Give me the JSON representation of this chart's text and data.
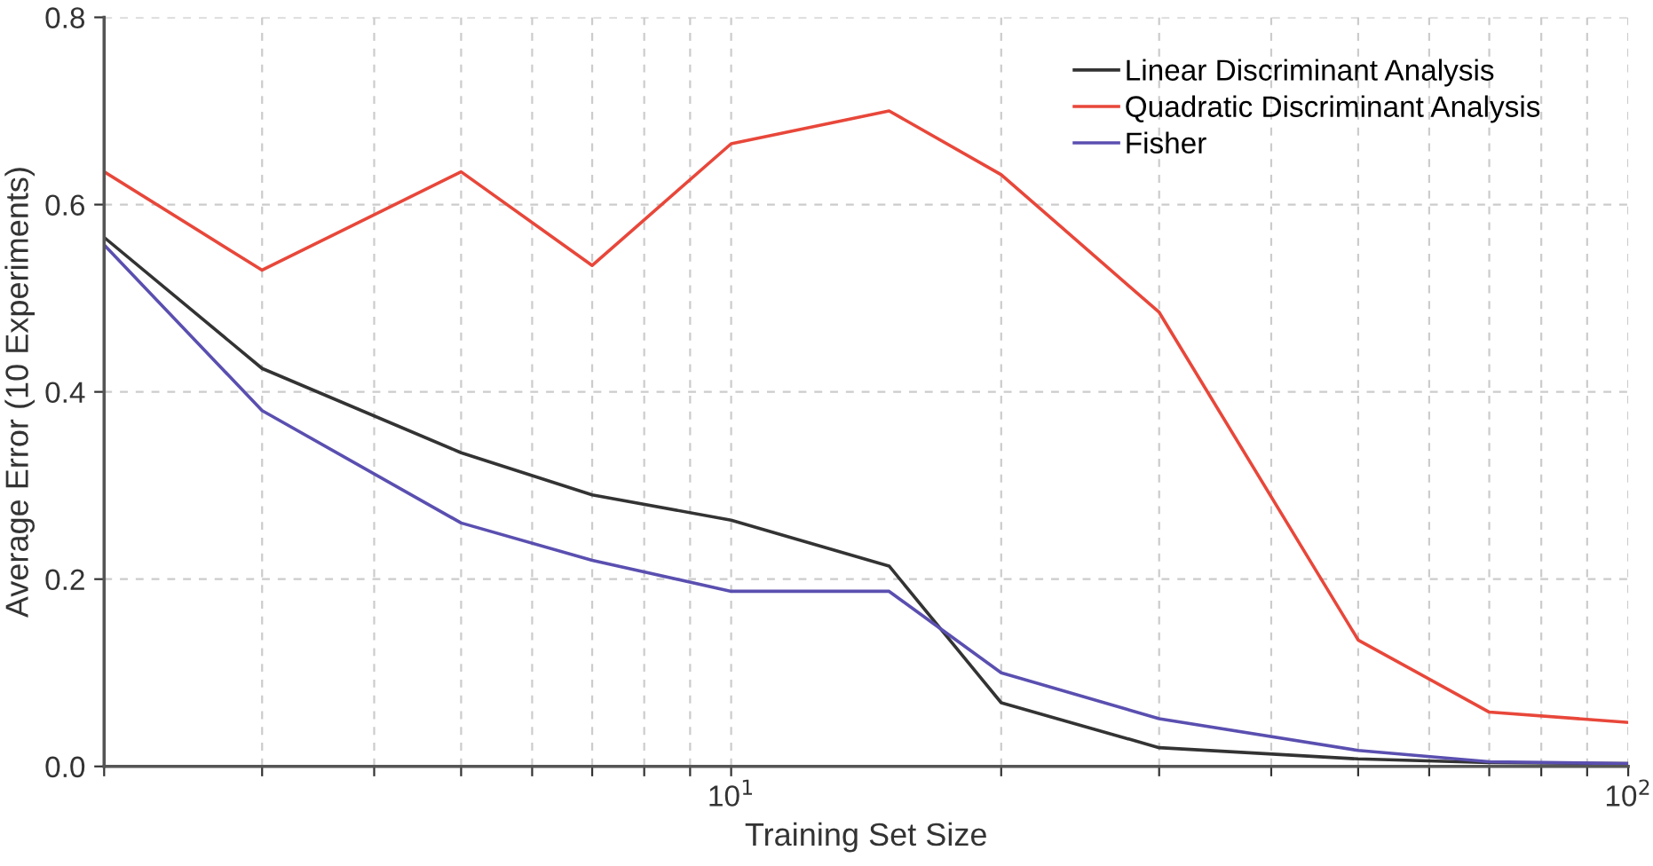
{
  "chart_data": {
    "type": "line",
    "xlabel": "Training Set Size",
    "ylabel": "Average Error (10 Experiments)",
    "log": "x",
    "xlim": [
      2,
      100
    ],
    "ylim": [
      0,
      0.8
    ],
    "xticks": [
      {
        "value": 2,
        "label": null
      },
      {
        "value": 3,
        "label": null
      },
      {
        "value": 4,
        "label": null
      },
      {
        "value": 5,
        "label": null
      },
      {
        "value": 6,
        "label": null
      },
      {
        "value": 7,
        "label": null
      },
      {
        "value": 8,
        "label": null
      },
      {
        "value": 9,
        "label": null
      },
      {
        "value": 10,
        "label": "10$^{1}$"
      },
      {
        "value": 20,
        "label": null
      },
      {
        "value": 30,
        "label": null
      },
      {
        "value": 40,
        "label": null
      },
      {
        "value": 50,
        "label": null
      },
      {
        "value": 60,
        "label": null
      },
      {
        "value": 70,
        "label": null
      },
      {
        "value": 80,
        "label": null
      },
      {
        "value": 90,
        "label": null
      },
      {
        "value": 100,
        "label": "10$^{2}$"
      }
    ],
    "yticks": [
      {
        "value": 0,
        "label": "0.0"
      },
      0.2,
      0.4,
      0.6,
      0.8
    ],
    "grid": true,
    "legend": "top right",
    "marker": "none",
    "line_style": "solid",
    "x": [
      2,
      3,
      5,
      7,
      10,
      15,
      20,
      30,
      50,
      70,
      100
    ],
    "series": [
      {
        "name": "Linear Discriminant Analysis",
        "color": "#333333",
        "values": [
          0.565,
          0.425,
          0.335,
          0.29,
          0.263,
          0.214,
          0.068,
          0.02,
          0.008,
          0.004,
          0.003
        ]
      },
      {
        "name": "Quadratic Discriminant Analysis",
        "color": "#e8473a",
        "values": [
          0.635,
          0.53,
          0.635,
          0.535,
          0.665,
          0.7,
          0.632,
          0.485,
          0.135,
          0.058,
          0.047
        ]
      },
      {
        "name": "Fisher",
        "color": "#5a4fb0",
        "values": [
          0.557,
          0.38,
          0.26,
          0.22,
          0.187,
          0.187,
          0.1,
          0.051,
          0.017,
          0.005,
          0.003
        ]
      }
    ]
  }
}
